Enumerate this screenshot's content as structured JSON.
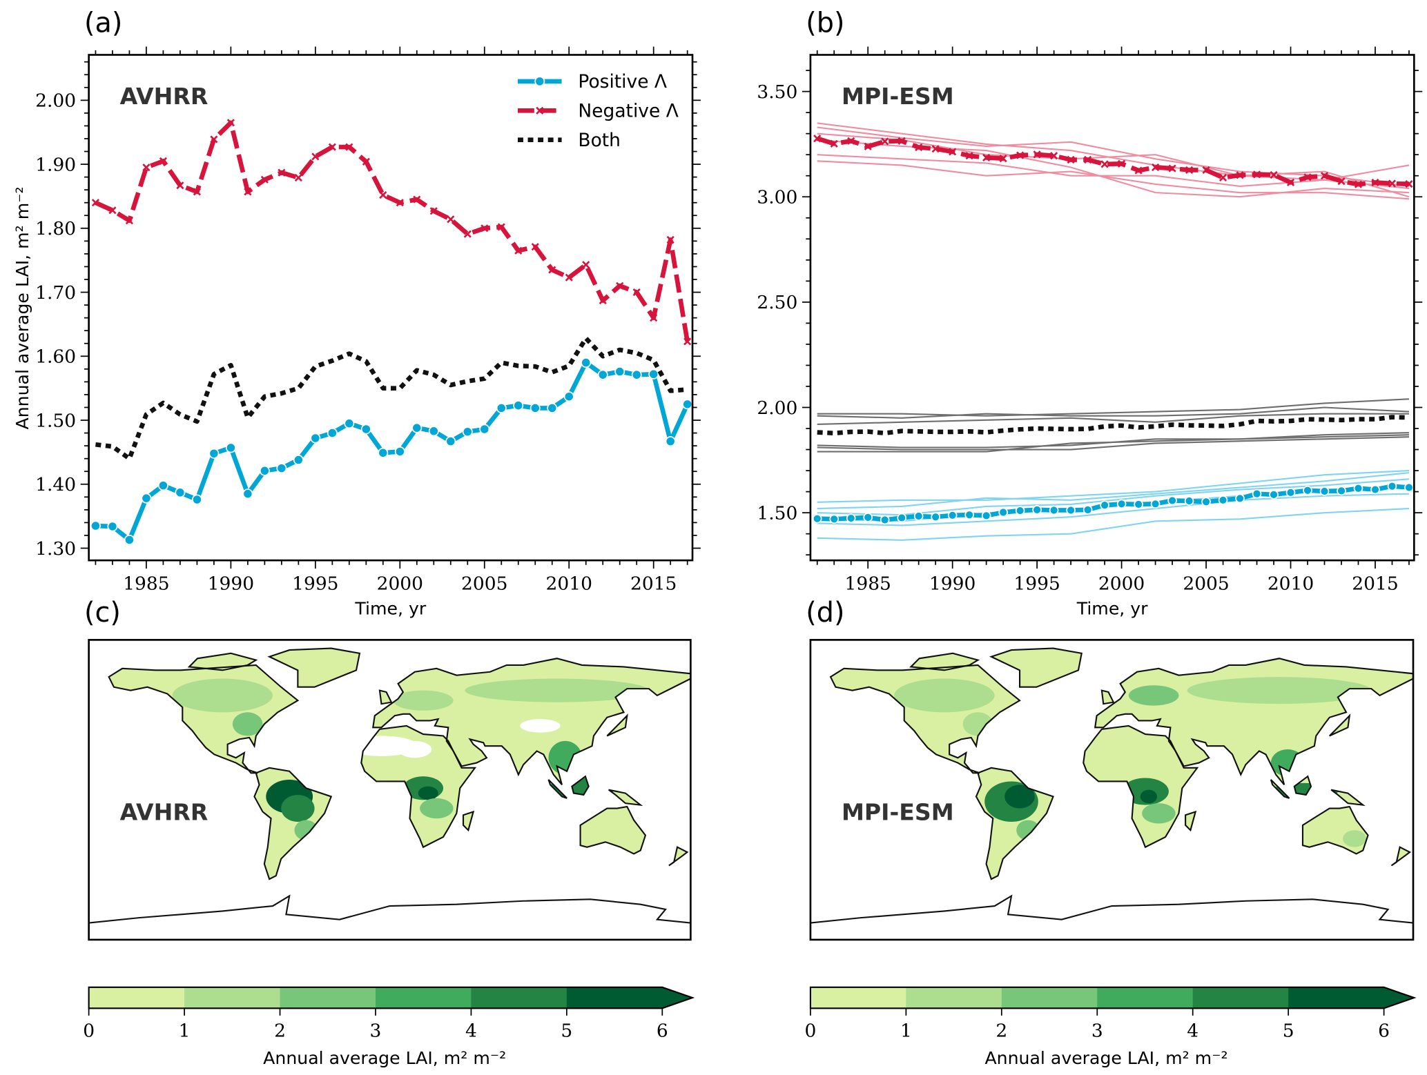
{
  "chart_data": [
    {
      "id": "a",
      "type": "line",
      "panel_label": "(a)",
      "title": "AVHRR",
      "xlabel": "Time, yr",
      "ylabel": "Annual average LAI, m² m⁻²",
      "xlim": [
        1981.6,
        2017.3
      ],
      "ylim": [
        1.281,
        2.071
      ],
      "grid": false,
      "xticks": [
        1985,
        1990,
        1995,
        2000,
        2005,
        2010,
        2015
      ],
      "xtick_labels": [
        "1985",
        "1990",
        "1995",
        "2000",
        "2005",
        "2010",
        "2015"
      ],
      "yticks": [
        1.3,
        1.4,
        1.5,
        1.6,
        1.7,
        1.8,
        1.9,
        2.0
      ],
      "ytick_labels": [
        "1.30",
        "1.40",
        "1.50",
        "1.60",
        "1.70",
        "1.80",
        "1.90",
        "2.00"
      ],
      "legend": {
        "placement": "top-right",
        "entries": [
          "Positive Λ",
          "Negative Λ",
          "Both"
        ]
      },
      "x": [
        1982,
        1983,
        1984,
        1985,
        1986,
        1987,
        1988,
        1989,
        1990,
        1991,
        1992,
        1993,
        1994,
        1995,
        1996,
        1997,
        1998,
        1999,
        2000,
        2001,
        2002,
        2003,
        2004,
        2005,
        2006,
        2007,
        2008,
        2009,
        2010,
        2011,
        2012,
        2013,
        2014,
        2015,
        2016,
        2017
      ],
      "series": [
        {
          "name": "Positive Λ",
          "style": "positive",
          "color": "#00a6d6",
          "values": [
            1.335,
            1.334,
            1.313,
            1.378,
            1.398,
            1.387,
            1.376,
            1.448,
            1.457,
            1.385,
            1.421,
            1.425,
            1.438,
            1.472,
            1.48,
            1.495,
            1.486,
            1.449,
            1.451,
            1.488,
            1.483,
            1.467,
            1.482,
            1.486,
            1.519,
            1.523,
            1.519,
            1.519,
            1.537,
            1.59,
            1.571,
            1.576,
            1.571,
            1.572,
            1.467,
            1.525
          ]
        },
        {
          "name": "Negative Λ",
          "style": "negative",
          "color": "#d6143c",
          "values": [
            1.84,
            1.828,
            1.812,
            1.895,
            1.905,
            1.867,
            1.857,
            1.939,
            1.965,
            1.857,
            1.876,
            1.887,
            1.879,
            1.912,
            1.927,
            1.927,
            1.904,
            1.852,
            1.84,
            1.845,
            1.827,
            1.814,
            1.791,
            1.8,
            1.802,
            1.765,
            1.771,
            1.735,
            1.723,
            1.743,
            1.687,
            1.71,
            1.7,
            1.66,
            1.782,
            1.623
          ]
        },
        {
          "name": "Both",
          "style": "both",
          "color": "#111111",
          "values": [
            1.462,
            1.459,
            1.44,
            1.509,
            1.527,
            1.509,
            1.498,
            1.572,
            1.586,
            1.504,
            1.537,
            1.542,
            1.55,
            1.584,
            1.593,
            1.604,
            1.592,
            1.55,
            1.55,
            1.578,
            1.571,
            1.555,
            1.561,
            1.565,
            1.59,
            1.585,
            1.584,
            1.575,
            1.585,
            1.628,
            1.6,
            1.61,
            1.605,
            1.594,
            1.546,
            1.548
          ]
        }
      ]
    },
    {
      "id": "b",
      "type": "line",
      "panel_label": "(b)",
      "title": "MPI-ESM",
      "xlabel": "Time, yr",
      "xlim": [
        1981.6,
        2017.3
      ],
      "ylim": [
        1.274,
        3.674
      ],
      "grid": false,
      "xticks": [
        1985,
        1990,
        1995,
        2000,
        2005,
        2010,
        2015
      ],
      "xtick_labels": [
        "1985",
        "1990",
        "1995",
        "2000",
        "2005",
        "2010",
        "2015"
      ],
      "yticks": [
        1.5,
        2.0,
        2.5,
        3.0,
        3.5
      ],
      "ytick_labels": [
        "1.50",
        "2.00",
        "2.50",
        "3.00",
        "3.50"
      ],
      "x": [
        1982,
        1983,
        1984,
        1985,
        1986,
        1987,
        1988,
        1989,
        1990,
        1991,
        1992,
        1993,
        1994,
        1995,
        1996,
        1997,
        1998,
        1999,
        2000,
        2001,
        2002,
        2003,
        2004,
        2005,
        2006,
        2007,
        2008,
        2009,
        2010,
        2011,
        2012,
        2013,
        2014,
        2015,
        2016,
        2017
      ],
      "member_x": [
        1982,
        1987,
        1992,
        1997,
        2002,
        2007,
        2012,
        2017
      ],
      "series": [
        {
          "name": "Negative Λ",
          "style": "negative",
          "color": "#d6143c",
          "member_color": "#f08ca0",
          "values": [
            3.277,
            3.252,
            3.265,
            3.239,
            3.263,
            3.265,
            3.235,
            3.228,
            3.214,
            3.195,
            3.186,
            3.182,
            3.197,
            3.201,
            3.195,
            3.176,
            3.176,
            3.155,
            3.157,
            3.125,
            3.14,
            3.135,
            3.127,
            3.127,
            3.091,
            3.103,
            3.106,
            3.104,
            3.068,
            3.093,
            3.1,
            3.074,
            3.059,
            3.068,
            3.063,
            3.061
          ],
          "members": [
            [
              3.35,
              3.3,
              3.25,
              3.22,
              3.15,
              3.1,
              3.08,
              3.15
            ],
            [
              3.33,
              3.28,
              3.24,
              3.26,
              3.18,
              3.12,
              3.1,
              3.05
            ],
            [
              3.3,
              3.27,
              3.2,
              3.18,
              3.2,
              3.1,
              3.12,
              3.0
            ],
            [
              3.27,
              3.24,
              3.22,
              3.14,
              3.02,
              3.0,
              3.04,
              3.02
            ],
            [
              3.2,
              3.18,
              3.16,
              3.1,
              3.1,
              3.05,
              3.08,
              3.04
            ],
            [
              3.17,
              3.15,
              3.1,
              3.12,
              3.06,
              3.02,
              3.02,
              2.99
            ]
          ]
        },
        {
          "name": "Both",
          "style": "both",
          "color": "#111111",
          "member_color": "#6e6e6e",
          "values": [
            1.882,
            1.878,
            1.884,
            1.885,
            1.878,
            1.888,
            1.886,
            1.884,
            1.884,
            1.886,
            1.882,
            1.89,
            1.896,
            1.9,
            1.898,
            1.897,
            1.898,
            1.91,
            1.914,
            1.905,
            1.91,
            1.918,
            1.915,
            1.914,
            1.912,
            1.92,
            1.936,
            1.934,
            1.936,
            1.944,
            1.942,
            1.94,
            1.944,
            1.944,
            1.954,
            1.952
          ],
          "members": [
            [
              1.97,
              1.97,
              1.96,
              1.97,
              1.98,
              1.99,
              2.02,
              2.04
            ],
            [
              1.96,
              1.95,
              1.97,
              1.96,
              1.96,
              1.97,
              2.0,
              1.98
            ],
            [
              1.92,
              1.93,
              1.94,
              1.95,
              1.93,
              1.96,
              1.97,
              1.97
            ],
            [
              1.82,
              1.81,
              1.81,
              1.82,
              1.85,
              1.85,
              1.87,
              1.88
            ],
            [
              1.81,
              1.8,
              1.8,
              1.8,
              1.83,
              1.84,
              1.85,
              1.86
            ],
            [
              1.79,
              1.79,
              1.79,
              1.83,
              1.84,
              1.85,
              1.86,
              1.87
            ]
          ]
        },
        {
          "name": "Positive Λ",
          "style": "positive",
          "color": "#00a6d6",
          "member_color": "#7fd4ef",
          "values": [
            1.472,
            1.47,
            1.474,
            1.478,
            1.466,
            1.476,
            1.484,
            1.48,
            1.488,
            1.49,
            1.486,
            1.502,
            1.51,
            1.514,
            1.512,
            1.512,
            1.514,
            1.536,
            1.542,
            1.54,
            1.542,
            1.558,
            1.556,
            1.552,
            1.56,
            1.568,
            1.59,
            1.586,
            1.596,
            1.606,
            1.602,
            1.604,
            1.616,
            1.61,
            1.626,
            1.62
          ],
          "members": [
            [
              1.55,
              1.56,
              1.56,
              1.58,
              1.6,
              1.64,
              1.68,
              1.7
            ],
            [
              1.52,
              1.53,
              1.57,
              1.56,
              1.59,
              1.62,
              1.65,
              1.69
            ],
            [
              1.5,
              1.49,
              1.53,
              1.54,
              1.58,
              1.61,
              1.63,
              1.66
            ],
            [
              1.47,
              1.46,
              1.5,
              1.51,
              1.55,
              1.58,
              1.61,
              1.62
            ],
            [
              1.45,
              1.44,
              1.46,
              1.48,
              1.52,
              1.56,
              1.58,
              1.59
            ],
            [
              1.38,
              1.37,
              1.39,
              1.4,
              1.46,
              1.47,
              1.5,
              1.52
            ]
          ]
        }
      ]
    },
    {
      "id": "c",
      "type": "heatmap",
      "panel_label": "(c)",
      "title": "AVHRR",
      "colorbar": {
        "ticks": [
          0,
          1,
          2,
          3,
          4,
          5,
          6
        ],
        "tick_labels": [
          "0",
          "1",
          "2",
          "3",
          "4",
          "5",
          "6"
        ],
        "colors": [
          "#d9f0a3",
          "#addd8e",
          "#78c679",
          "#41ab5d",
          "#238443",
          "#005a32"
        ],
        "extend": "max",
        "label": "Annual average LAI, m² m⁻²"
      }
    },
    {
      "id": "d",
      "type": "heatmap",
      "panel_label": "(d)",
      "title": "MPI-ESM",
      "colorbar": {
        "ticks": [
          0,
          1,
          2,
          3,
          4,
          5,
          6
        ],
        "tick_labels": [
          "0",
          "1",
          "2",
          "3",
          "4",
          "5",
          "6"
        ],
        "colors": [
          "#d9f0a3",
          "#addd8e",
          "#78c679",
          "#41ab5d",
          "#238443",
          "#005a32"
        ],
        "extend": "max",
        "label": "Annual average LAI, m² m⁻²"
      }
    }
  ]
}
